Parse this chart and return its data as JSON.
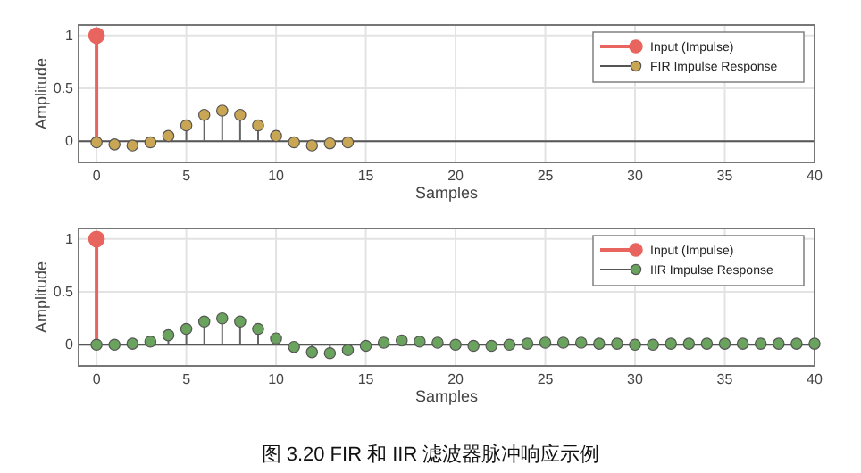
{
  "chart_data": [
    {
      "type": "lollipop",
      "xlabel": "Samples",
      "ylabel": "Amplitude",
      "xlim": [
        -1,
        40
      ],
      "ylim": [
        -0.2,
        1.1
      ],
      "xticks": [
        0,
        5,
        10,
        15,
        20,
        25,
        30,
        35,
        40
      ],
      "yticks": [
        0,
        0.5,
        1
      ],
      "grid": true,
      "legend": "top right",
      "marker": "circle",
      "series": [
        {
          "name": "Input (Impulse)",
          "color": "#e8645e",
          "x": [
            0
          ],
          "values": [
            1
          ]
        },
        {
          "name": "FIR Impulse Response",
          "color": "#c9a654",
          "x": [
            0,
            1,
            2,
            3,
            4,
            5,
            6,
            7,
            8,
            9,
            10,
            11,
            12,
            13,
            14
          ],
          "values": [
            -0.01,
            -0.03,
            -0.04,
            -0.01,
            0.05,
            0.15,
            0.25,
            0.29,
            0.25,
            0.15,
            0.05,
            -0.01,
            -0.04,
            -0.02,
            -0.01
          ]
        }
      ]
    },
    {
      "type": "lollipop",
      "xlabel": "Samples",
      "ylabel": "Amplitude",
      "xlim": [
        -1,
        40
      ],
      "ylim": [
        -0.2,
        1.1
      ],
      "xticks": [
        0,
        5,
        10,
        15,
        20,
        25,
        30,
        35,
        40
      ],
      "yticks": [
        0,
        0.5,
        1
      ],
      "grid": true,
      "legend": "top right",
      "marker": "circle",
      "annotations": [
        "图 3.20 FIR 和 IIR 滤波器脉冲响应示例"
      ],
      "series": [
        {
          "name": "Input (Impulse)",
          "color": "#e8645e",
          "x": [
            0
          ],
          "values": [
            1
          ]
        },
        {
          "name": "IIR Impulse Response",
          "color": "#6aa35e",
          "x": [
            0,
            1,
            2,
            3,
            4,
            5,
            6,
            7,
            8,
            9,
            10,
            11,
            12,
            13,
            14,
            15,
            16,
            17,
            18,
            19,
            20,
            21,
            22,
            23,
            24,
            25,
            26,
            27,
            28,
            29,
            30,
            31,
            32,
            33,
            34,
            35,
            36,
            37,
            38,
            39,
            40
          ],
          "values": [
            0,
            0,
            0.01,
            0.03,
            0.09,
            0.15,
            0.22,
            0.25,
            0.22,
            0.15,
            0.06,
            -0.02,
            -0.07,
            -0.08,
            -0.05,
            -0.01,
            0.02,
            0.04,
            0.03,
            0.02,
            0,
            -0.01,
            -0.01,
            0,
            0.01,
            0.02,
            0.02,
            0.02,
            0.01,
            0.01,
            0,
            0,
            0.01,
            0.01,
            0.01,
            0.01,
            0.01,
            0.01,
            0.01,
            0.01,
            0.01
          ]
        }
      ]
    }
  ]
}
